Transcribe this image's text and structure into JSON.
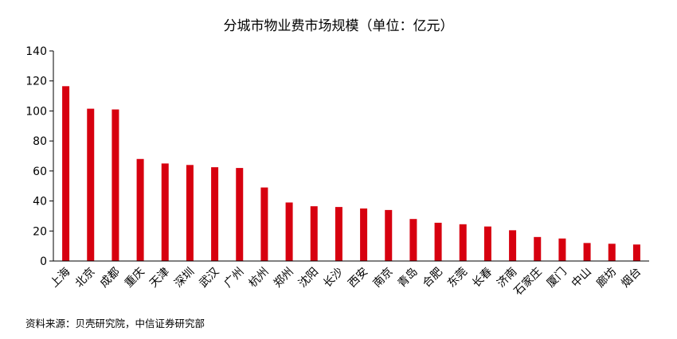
{
  "chart_data": {
    "type": "bar",
    "title": "分城市物业费市场规模（单位：亿元）",
    "categories": [
      "上海",
      "北京",
      "成都",
      "重庆",
      "天津",
      "深圳",
      "武汉",
      "广州",
      "杭州",
      "郑州",
      "沈阳",
      "长沙",
      "西安",
      "南京",
      "青岛",
      "合肥",
      "东莞",
      "长春",
      "济南",
      "石家庄",
      "厦门",
      "中山",
      "廊坊",
      "烟台"
    ],
    "values": [
      116.5,
      101.5,
      101,
      68,
      65,
      64,
      62.5,
      62,
      49,
      39,
      36.5,
      36,
      35,
      34,
      28,
      25.5,
      24.5,
      23,
      20.5,
      16,
      15,
      12,
      11.5,
      11
    ],
    "xlabel": "",
    "ylabel": "",
    "ylim": [
      0,
      140
    ],
    "yticks": [
      "0",
      "20",
      "40",
      "60",
      "80",
      "100",
      "120",
      "140"
    ],
    "grid": false,
    "bar_color": "#d7000f"
  },
  "source_note": "资料来源：贝壳研究院，中信证券研究部"
}
